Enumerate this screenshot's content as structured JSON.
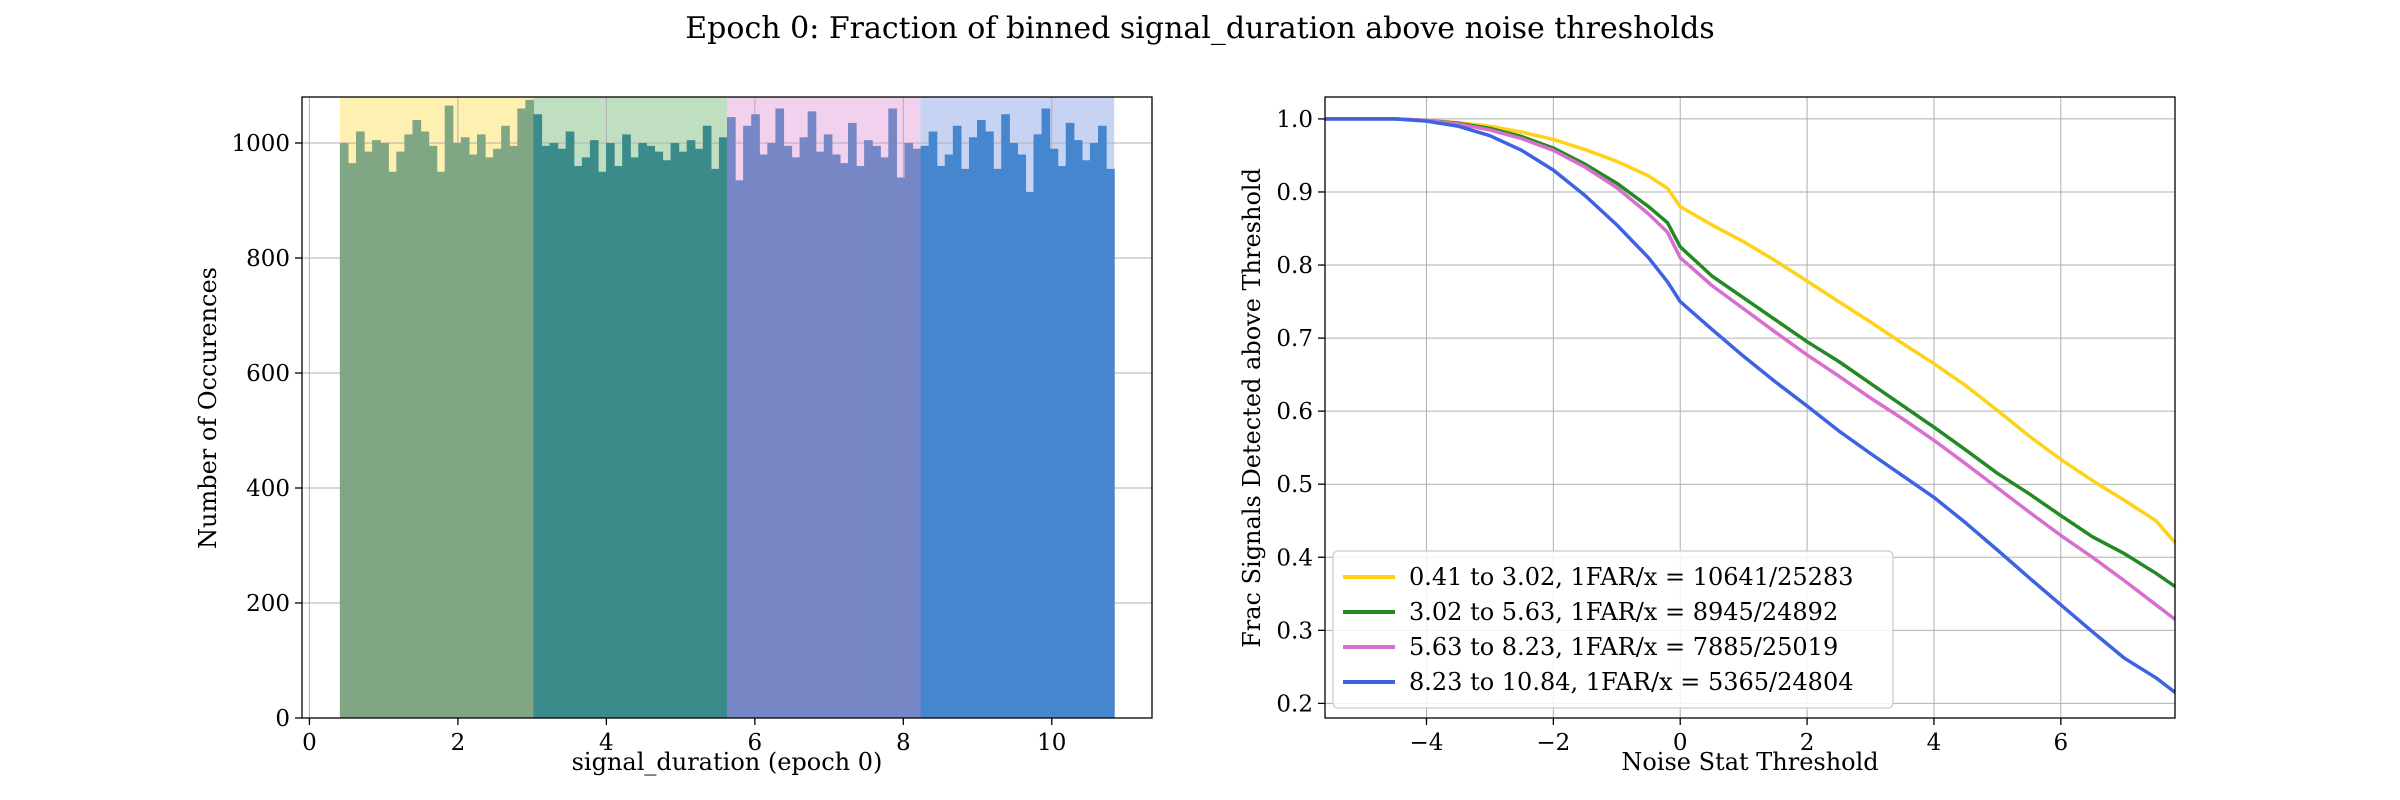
{
  "figure": {
    "title": "Epoch 0: Fraction of binned signal_duration above noise thresholds"
  },
  "chart_data": [
    {
      "type": "bar",
      "subtype": "histogram",
      "xlabel": "signal_duration (epoch 0)",
      "ylabel": "Number of Occurences",
      "xlim": [
        -0.1,
        11.35
      ],
      "ylim": [
        0,
        1080
      ],
      "xticks": [
        0,
        2,
        4,
        6,
        8,
        10
      ],
      "yticks": [
        0,
        200,
        400,
        600,
        800,
        1000
      ],
      "grid": true,
      "bin_start": 0.41,
      "bin_end": 10.84,
      "counts": [
        1000,
        965,
        1020,
        985,
        1005,
        1000,
        950,
        985,
        1015,
        1040,
        1020,
        995,
        950,
        1065,
        1000,
        1010,
        980,
        1015,
        975,
        990,
        1030,
        995,
        1060,
        1075,
        1050,
        995,
        1000,
        990,
        1020,
        960,
        975,
        1005,
        950,
        1000,
        960,
        1015,
        975,
        1000,
        995,
        985,
        970,
        1000,
        985,
        1005,
        990,
        1030,
        955,
        1010,
        1045,
        935,
        1030,
        1050,
        980,
        1000,
        1060,
        995,
        975,
        1010,
        1055,
        985,
        1015,
        980,
        965,
        1035,
        960,
        1005,
        995,
        975,
        1060,
        940,
        1000,
        990,
        995,
        1020,
        960,
        980,
        1030,
        955,
        1010,
        1040,
        1020,
        955,
        1050,
        1000,
        980,
        915,
        1015,
        1060,
        990,
        960,
        1035,
        1005,
        970,
        1000,
        1030,
        955
      ],
      "series": [
        {
          "name": "0.41 to 3.02",
          "range": [
            0.41,
            3.02
          ],
          "color": "#f5d63a"
        },
        {
          "name": "3.02 to 5.63",
          "range": [
            3.02,
            5.63
          ],
          "color": "#2e8b3a"
        },
        {
          "name": "5.63 to 8.23",
          "range": [
            5.63,
            8.23
          ],
          "color": "#e2a3e6"
        },
        {
          "name": "8.23 to 10.84",
          "range": [
            8.23,
            10.84
          ],
          "color": "#6b8ee8"
        }
      ],
      "bar_colors": [
        "#80a683",
        "#3c8b8b",
        "#7787c6",
        "#4686cf"
      ],
      "band_colors": [
        "#fdf0b1",
        "#c0dfc0",
        "#f2d1ef",
        "#c7d3f3"
      ]
    },
    {
      "type": "line",
      "xlabel": "Noise Stat Threshold",
      "ylabel": "Frac Signals Detected above Threshold",
      "xlim": [
        -5.6,
        7.8
      ],
      "ylim": [
        0.18,
        1.03
      ],
      "xticks": [
        -4,
        -2,
        0,
        2,
        4,
        6
      ],
      "xtick_labels": [
        "−4",
        "−2",
        "0",
        "2",
        "4",
        "6"
      ],
      "yticks": [
        0.2,
        0.3,
        0.4,
        0.5,
        0.6,
        0.7,
        0.8,
        0.9,
        1.0
      ],
      "ytick_labels": [
        "0.2",
        "0.3",
        "0.4",
        "0.5",
        "0.6",
        "0.7",
        "0.8",
        "0.9",
        "1.0"
      ],
      "grid": true,
      "legend_position": "lower-left",
      "series": [
        {
          "name": "0.41 to 3.02, 1FAR/x = 10641/25283",
          "color": "#ffd21a",
          "x": [
            -5.6,
            -4.5,
            -4,
            -3.5,
            -3,
            -2.5,
            -2,
            -1.5,
            -1,
            -0.5,
            -0.2,
            0,
            0.5,
            1,
            1.5,
            2,
            2.5,
            3,
            3.5,
            4,
            4.5,
            5,
            5.5,
            6,
            6.5,
            7,
            7.5,
            7.8
          ],
          "y": [
            1.0,
            1.0,
            0.998,
            0.995,
            0.99,
            0.982,
            0.972,
            0.958,
            0.942,
            0.922,
            0.905,
            0.88,
            0.855,
            0.832,
            0.806,
            0.778,
            0.75,
            0.722,
            0.693,
            0.665,
            0.635,
            0.601,
            0.566,
            0.534,
            0.505,
            0.478,
            0.45,
            0.42
          ]
        },
        {
          "name": "3.02 to 5.63, 1FAR/x = 8945/24892",
          "color": "#238a23",
          "x": [
            -5.6,
            -4.5,
            -4,
            -3.5,
            -3,
            -2.5,
            -2,
            -1.5,
            -1,
            -0.5,
            -0.2,
            0,
            0.5,
            1,
            1.5,
            2,
            2.5,
            3,
            3.5,
            4,
            4.5,
            5,
            5.5,
            6,
            6.5,
            7,
            7.5,
            7.8
          ],
          "y": [
            1.0,
            1.0,
            0.998,
            0.994,
            0.987,
            0.976,
            0.96,
            0.938,
            0.912,
            0.88,
            0.858,
            0.825,
            0.785,
            0.755,
            0.725,
            0.695,
            0.668,
            0.638,
            0.608,
            0.578,
            0.547,
            0.515,
            0.487,
            0.457,
            0.428,
            0.405,
            0.378,
            0.36
          ]
        },
        {
          "name": "5.63 to 8.23, 1FAR/x = 7885/25019",
          "color": "#d86fd0",
          "x": [
            -5.6,
            -4.5,
            -4,
            -3.5,
            -3,
            -2.5,
            -2,
            -1.5,
            -1,
            -0.5,
            -0.2,
            0,
            0.5,
            1,
            1.5,
            2,
            2.5,
            3,
            3.5,
            4,
            4.5,
            5,
            5.5,
            6,
            6.5,
            7,
            7.5,
            7.8
          ],
          "y": [
            1.0,
            1.0,
            0.998,
            0.993,
            0.985,
            0.973,
            0.957,
            0.934,
            0.906,
            0.87,
            0.845,
            0.81,
            0.772,
            0.74,
            0.708,
            0.677,
            0.648,
            0.618,
            0.59,
            0.56,
            0.528,
            0.495,
            0.462,
            0.43,
            0.4,
            0.368,
            0.335,
            0.315
          ]
        },
        {
          "name": "8.23 to 10.84, 1FAR/x = 5365/24804",
          "color": "#3d63e2",
          "x": [
            -5.6,
            -4.5,
            -4,
            -3.5,
            -3,
            -2.5,
            -2,
            -1.5,
            -1,
            -0.5,
            -0.2,
            0,
            0.5,
            1,
            1.5,
            2,
            2.5,
            3,
            3.5,
            4,
            4.5,
            5,
            5.5,
            6,
            6.5,
            7,
            7.5,
            7.8
          ],
          "y": [
            1.0,
            1.0,
            0.997,
            0.99,
            0.977,
            0.957,
            0.93,
            0.895,
            0.855,
            0.81,
            0.777,
            0.75,
            0.712,
            0.675,
            0.64,
            0.607,
            0.573,
            0.542,
            0.512,
            0.482,
            0.447,
            0.41,
            0.372,
            0.335,
            0.298,
            0.262,
            0.235,
            0.215
          ]
        }
      ]
    }
  ]
}
